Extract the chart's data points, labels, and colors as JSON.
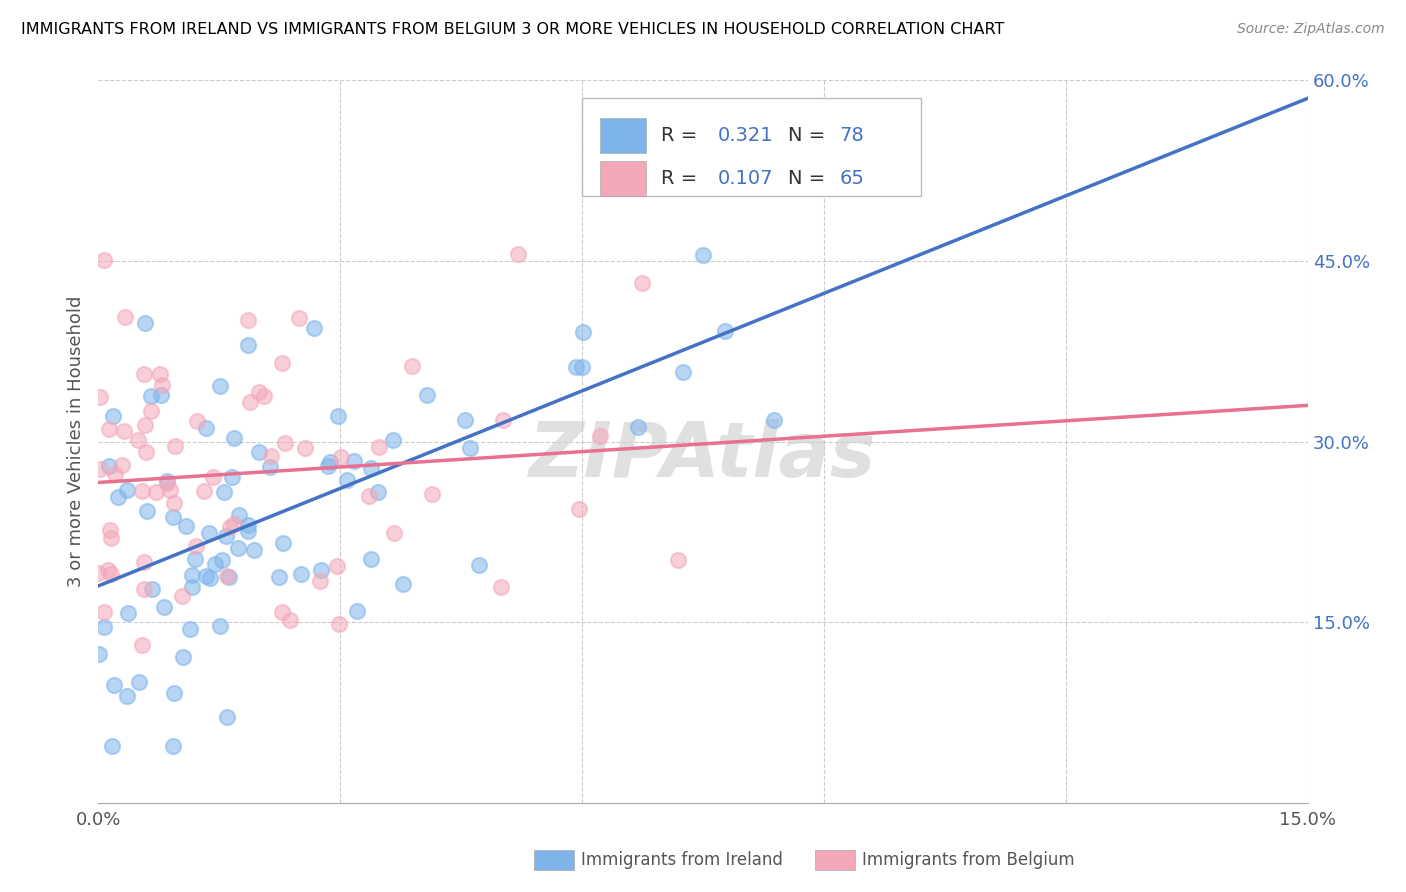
{
  "title": "IMMIGRANTS FROM IRELAND VS IMMIGRANTS FROM BELGIUM 3 OR MORE VEHICLES IN HOUSEHOLD CORRELATION CHART",
  "source": "Source: ZipAtlas.com",
  "ylabel": "3 or more Vehicles in Household",
  "xlim": [
    0.0,
    0.15
  ],
  "ylim": [
    0.0,
    0.6
  ],
  "ireland_color": "#7EB4EA",
  "belgium_color": "#F4A7B9",
  "ireland_R": 0.321,
  "ireland_N": 78,
  "belgium_R": 0.107,
  "belgium_N": 65,
  "ireland_line_color": "#4472C4",
  "belgium_line_color": "#E87090",
  "watermark": "ZIPAtlas",
  "legend_ireland_label": "Immigrants from Ireland",
  "legend_belgium_label": "Immigrants from Belgium",
  "right_axis_color": "#4472C4",
  "grid_color": "#cccccc",
  "title_fontsize": 11.5,
  "axis_label_fontsize": 13,
  "tick_fontsize": 13
}
